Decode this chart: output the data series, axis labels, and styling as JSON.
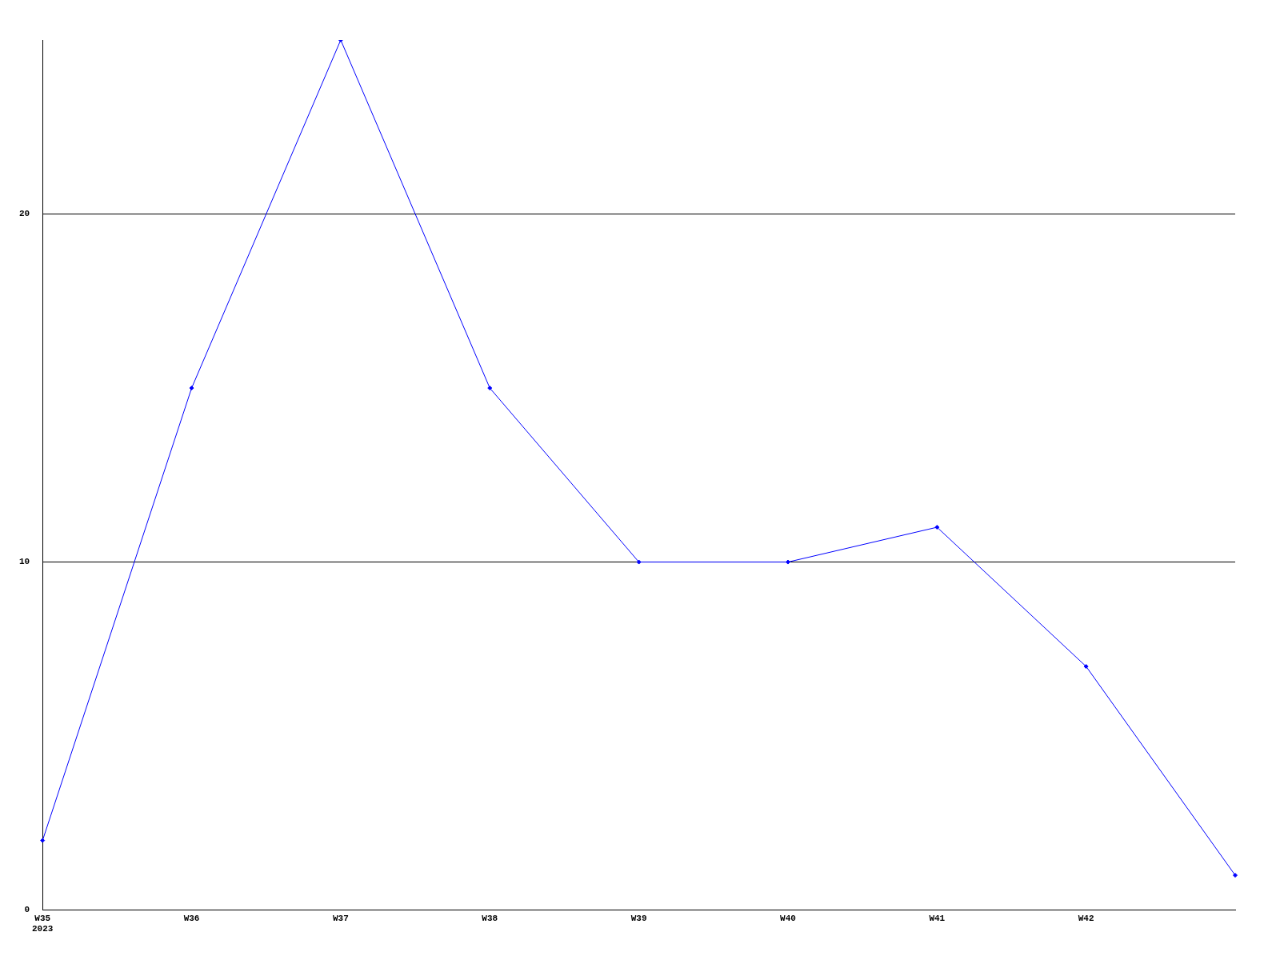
{
  "chart_data": {
    "type": "line",
    "categories": [
      "W35\n2023",
      "W36",
      "W37",
      "W38",
      "W39",
      "W40",
      "W41",
      "W42",
      null
    ],
    "series": [
      {
        "color": "#0000ff",
        "values": [
          2,
          15,
          25,
          15,
          10,
          10,
          11,
          7,
          1
        ]
      }
    ],
    "ylim": [
      0,
      25
    ],
    "yticks": [
      0,
      10,
      20
    ],
    "grid": "y",
    "marker": "diamond",
    "line_style": "solid",
    "legend": false
  }
}
